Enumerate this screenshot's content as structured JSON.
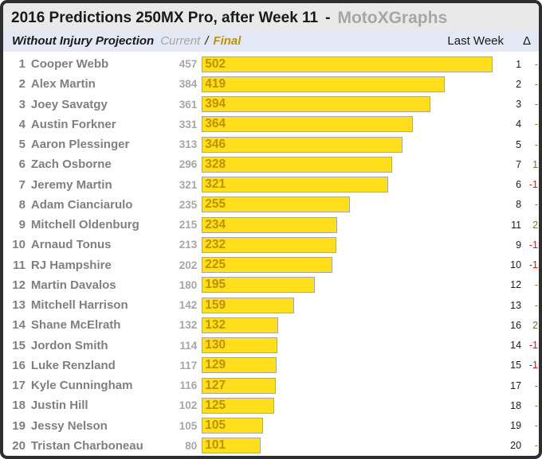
{
  "header": {
    "title": "2016 Predictions 250MX Pro, after Week 11",
    "separator": "-",
    "brand": "MotoXGraphs"
  },
  "subheader": {
    "label": "Without Injury Projection",
    "series_current_label": "Current",
    "series_divider": "/",
    "series_final_label": "Final",
    "last_week_label": "Last Week",
    "delta_label": "Δ"
  },
  "colors": {
    "frame_border": "#2e2e2e",
    "title_bg": "#E9E9E9",
    "title_text": "#1a1a1a",
    "brand_text": "#A6A6A6",
    "subheader_bg": "#E4E8F4",
    "bar_fill": "#FFDF1B",
    "bar_border": "#A6A6A6",
    "bar_label": "#BF9000",
    "current_text": "#A6A6A6",
    "name_text": "#7F7F7F",
    "delta_up": "#538135",
    "delta_down": "#FF0000",
    "delta_none": "#738033"
  },
  "chart_data": {
    "type": "bar",
    "orientation": "horizontal",
    "title": "2016 Predictions 250MX Pro, after Week 11 - MotoXGraphs",
    "subtitle": "Without Injury Projection",
    "series": [
      {
        "name": "Current",
        "role": "text-value-left-of-bar"
      },
      {
        "name": "Final",
        "role": "bar-with-inline-label"
      }
    ],
    "legend_position": "top-left-inline",
    "grid": false,
    "axis_range": [
      0,
      502
    ],
    "max_value": 502,
    "columns": [
      "rank",
      "name",
      "current",
      "final",
      "last_week",
      "delta"
    ],
    "rows": [
      {
        "rank": 1,
        "name": "Cooper Webb",
        "current": 457,
        "final": 502,
        "last_week": 1,
        "delta": "-",
        "delta_dir": "none"
      },
      {
        "rank": 2,
        "name": "Alex Martin",
        "current": 384,
        "final": 419,
        "last_week": 2,
        "delta": "-",
        "delta_dir": "none"
      },
      {
        "rank": 3,
        "name": "Joey Savatgy",
        "current": 361,
        "final": 394,
        "last_week": 3,
        "delta": "-",
        "delta_dir": "none"
      },
      {
        "rank": 4,
        "name": "Austin Forkner",
        "current": 331,
        "final": 364,
        "last_week": 4,
        "delta": "-",
        "delta_dir": "none"
      },
      {
        "rank": 5,
        "name": "Aaron Plessinger",
        "current": 313,
        "final": 346,
        "last_week": 5,
        "delta": "-",
        "delta_dir": "none"
      },
      {
        "rank": 6,
        "name": "Zach Osborne",
        "current": 296,
        "final": 328,
        "last_week": 7,
        "delta": "1",
        "delta_dir": "up"
      },
      {
        "rank": 7,
        "name": "Jeremy Martin",
        "current": 321,
        "final": 321,
        "last_week": 6,
        "delta": "-1",
        "delta_dir": "down"
      },
      {
        "rank": 8,
        "name": "Adam Cianciarulo",
        "current": 235,
        "final": 255,
        "last_week": 8,
        "delta": "-",
        "delta_dir": "none"
      },
      {
        "rank": 9,
        "name": "Mitchell Oldenburg",
        "current": 215,
        "final": 234,
        "last_week": 11,
        "delta": "2",
        "delta_dir": "up"
      },
      {
        "rank": 10,
        "name": "Arnaud Tonus",
        "current": 213,
        "final": 232,
        "last_week": 9,
        "delta": "-1",
        "delta_dir": "down"
      },
      {
        "rank": 11,
        "name": "RJ Hampshire",
        "current": 202,
        "final": 225,
        "last_week": 10,
        "delta": "-1",
        "delta_dir": "down"
      },
      {
        "rank": 12,
        "name": "Martin Davalos",
        "current": 180,
        "final": 195,
        "last_week": 12,
        "delta": "-",
        "delta_dir": "none"
      },
      {
        "rank": 13,
        "name": "Mitchell Harrison",
        "current": 142,
        "final": 159,
        "last_week": 13,
        "delta": "-",
        "delta_dir": "none"
      },
      {
        "rank": 14,
        "name": "Shane McElrath",
        "current": 132,
        "final": 132,
        "last_week": 16,
        "delta": "2",
        "delta_dir": "up"
      },
      {
        "rank": 15,
        "name": "Jordon Smith",
        "current": 114,
        "final": 130,
        "last_week": 14,
        "delta": "-1",
        "delta_dir": "down"
      },
      {
        "rank": 16,
        "name": "Luke Renzland",
        "current": 117,
        "final": 129,
        "last_week": 15,
        "delta": "-1",
        "delta_dir": "down"
      },
      {
        "rank": 17,
        "name": "Kyle Cunningham",
        "current": 116,
        "final": 127,
        "last_week": 17,
        "delta": "-",
        "delta_dir": "none"
      },
      {
        "rank": 18,
        "name": "Justin Hill",
        "current": 102,
        "final": 125,
        "last_week": 18,
        "delta": "-",
        "delta_dir": "none"
      },
      {
        "rank": 19,
        "name": "Jessy Nelson",
        "current": 105,
        "final": 105,
        "last_week": 19,
        "delta": "-",
        "delta_dir": "none"
      },
      {
        "rank": 20,
        "name": "Tristan Charboneau",
        "current": 80,
        "final": 101,
        "last_week": 20,
        "delta": "-",
        "delta_dir": "none"
      }
    ]
  }
}
